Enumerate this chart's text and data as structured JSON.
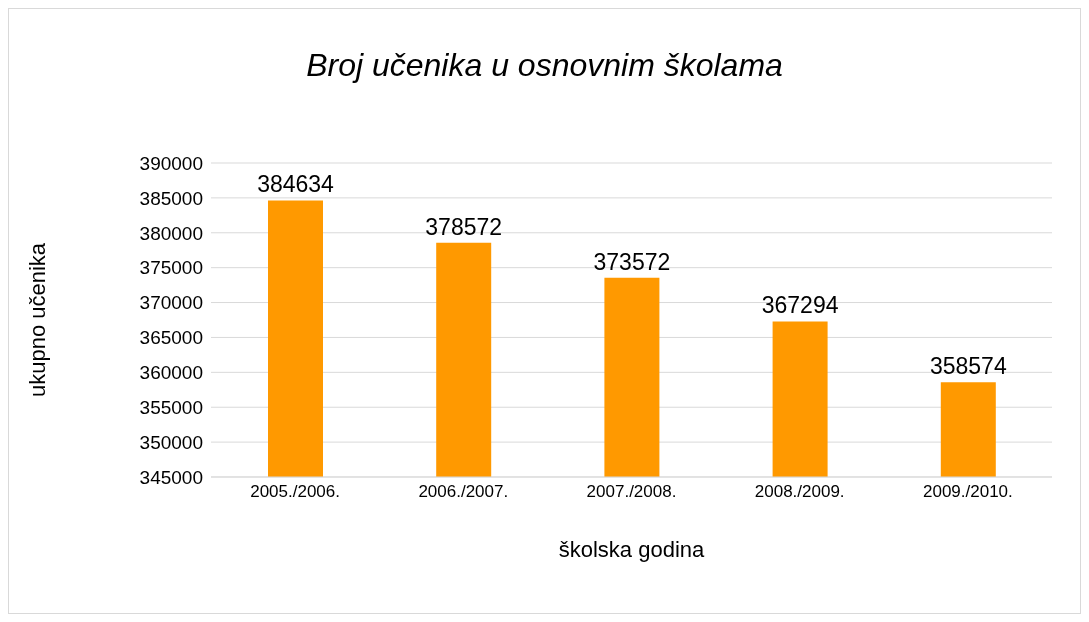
{
  "chart_data": {
    "type": "bar",
    "title": "Broj učenika u osnovnim školama",
    "xlabel": "školska godina",
    "ylabel": "ukupno učenika",
    "categories": [
      "2005./2006.",
      "2006./2007.",
      "2007./2008.",
      "2008./2009.",
      "2009./2010."
    ],
    "values": [
      384634,
      378572,
      373572,
      367294,
      358574
    ],
    "color": "#ff9900",
    "ylim": [
      345000,
      390000
    ],
    "yticks": [
      345000,
      350000,
      355000,
      360000,
      365000,
      370000,
      375000,
      380000,
      385000,
      390000
    ],
    "grid": "y",
    "data_labels": true
  }
}
